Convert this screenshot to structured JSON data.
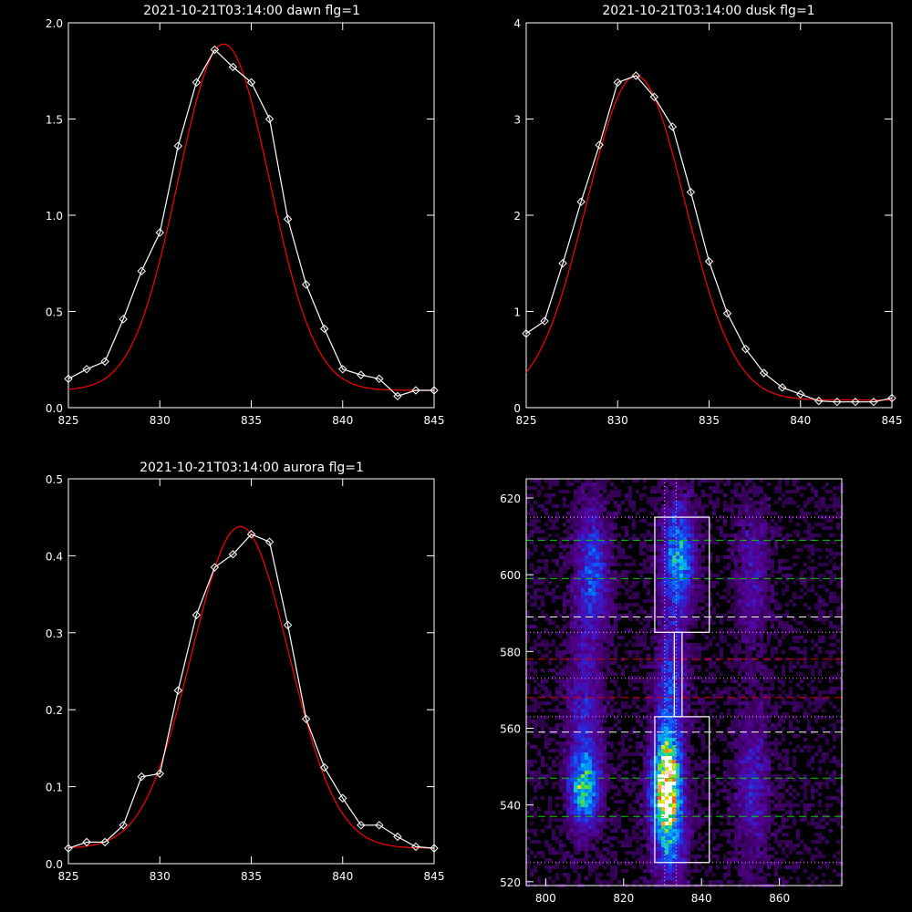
{
  "colors": {
    "background": "#000000",
    "axes": "#ffffff",
    "measured": "#ffffff",
    "fit": "#ff0000",
    "green_dash": "#00d000",
    "white_dash": "#ffffff",
    "red_dash": "#dd0000",
    "dotted": "#ff99ff"
  },
  "chart_data": [
    {
      "type": "line",
      "title": "2021-10-21T03:14:00 dawn flg=1",
      "xlim": [
        825,
        845
      ],
      "ylim": [
        0,
        2.0
      ],
      "xticks": [
        825,
        830,
        835,
        840,
        845
      ],
      "yticks": [
        0.0,
        0.5,
        1.0,
        1.5,
        2.0
      ],
      "ytick_labels": [
        "0.0",
        "0.5",
        "1.0",
        "1.5",
        "2.0"
      ],
      "series": [
        {
          "style": "white line with diamond markers",
          "x": [
            825,
            826,
            827,
            828,
            829,
            830,
            831,
            832,
            833,
            834,
            835,
            836,
            837,
            838,
            839,
            840,
            841,
            842,
            843,
            844,
            845
          ],
          "y": [
            0.15,
            0.2,
            0.24,
            0.46,
            0.71,
            0.91,
            1.36,
            1.69,
            1.86,
            1.77,
            1.69,
            1.5,
            0.98,
            0.64,
            0.41,
            0.2,
            0.17,
            0.15,
            0.06,
            0.09,
            0.09
          ]
        },
        {
          "style": "red gaussian fit",
          "gaussian": {
            "amp": 1.8,
            "center": 833.5,
            "sigma": 2.5,
            "offset": 0.09
          }
        }
      ]
    },
    {
      "type": "line",
      "title": "2021-10-21T03:14:00 dusk flg=1",
      "xlim": [
        825,
        845
      ],
      "ylim": [
        0,
        4
      ],
      "xticks": [
        825,
        830,
        835,
        840,
        845
      ],
      "yticks": [
        0,
        1,
        2,
        3,
        4
      ],
      "ytick_labels": [
        "0",
        "1",
        "2",
        "3",
        "4"
      ],
      "series": [
        {
          "style": "white line with diamond markers",
          "x": [
            825,
            826,
            827,
            828,
            829,
            830,
            831,
            832,
            833,
            834,
            835,
            836,
            837,
            838,
            839,
            840,
            841,
            842,
            843,
            844,
            845
          ],
          "y": [
            0.77,
            0.9,
            1.5,
            2.14,
            2.73,
            3.38,
            3.45,
            3.23,
            2.92,
            2.24,
            1.52,
            0.98,
            0.61,
            0.36,
            0.21,
            0.14,
            0.07,
            0.06,
            0.06,
            0.06,
            0.1
          ]
        },
        {
          "style": "red gaussian fit",
          "gaussian": {
            "amp": 3.37,
            "center": 831.0,
            "sigma": 2.7,
            "offset": 0.08
          }
        }
      ]
    },
    {
      "type": "line",
      "title": "2021-10-21T03:14:00 aurora flg=1",
      "xlim": [
        825,
        845
      ],
      "ylim": [
        0,
        0.5
      ],
      "xticks": [
        825,
        830,
        835,
        840,
        845
      ],
      "yticks": [
        0.0,
        0.1,
        0.2,
        0.3,
        0.4,
        0.5
      ],
      "ytick_labels": [
        "0.0",
        "0.1",
        "0.2",
        "0.3",
        "0.4",
        "0.5"
      ],
      "series": [
        {
          "style": "white line with diamond markers",
          "x": [
            825,
            826,
            827,
            828,
            829,
            830,
            831,
            832,
            833,
            834,
            835,
            836,
            837,
            838,
            839,
            840,
            841,
            842,
            843,
            844,
            845
          ],
          "y": [
            0.02,
            0.028,
            0.028,
            0.05,
            0.113,
            0.117,
            0.225,
            0.323,
            0.385,
            0.402,
            0.428,
            0.418,
            0.31,
            0.188,
            0.125,
            0.085,
            0.05,
            0.05,
            0.035,
            0.022,
            0.02
          ]
        },
        {
          "style": "red gaussian fit",
          "gaussian": {
            "amp": 0.418,
            "center": 834.4,
            "sigma": 2.65,
            "offset": 0.02
          }
        }
      ]
    },
    {
      "type": "heatmap",
      "xlim": [
        795,
        876
      ],
      "ylim": [
        519,
        625
      ],
      "xticks": [
        800,
        820,
        840,
        860
      ],
      "yticks": [
        520,
        540,
        560,
        580,
        600,
        620
      ],
      "blobs": [
        {
          "x": 810,
          "y": 544,
          "sx": 2.6,
          "sy": 6,
          "amp": 0.5
        },
        {
          "x": 810,
          "y": 560,
          "sx": 3,
          "sy": 16,
          "amp": 0.25
        },
        {
          "x": 812,
          "y": 601,
          "sx": 3,
          "sy": 12,
          "amp": 0.32
        },
        {
          "x": 831,
          "y": 545,
          "sx": 2.6,
          "sy": 9,
          "amp": 0.95
        },
        {
          "x": 832,
          "y": 530,
          "sx": 3,
          "sy": 8,
          "amp": 0.3
        },
        {
          "x": 832,
          "y": 570,
          "sx": 2.5,
          "sy": 12,
          "amp": 0.32
        },
        {
          "x": 834,
          "y": 604,
          "sx": 2.8,
          "sy": 10,
          "amp": 0.5
        },
        {
          "x": 853,
          "y": 545,
          "sx": 3,
          "sy": 14,
          "amp": 0.22
        },
        {
          "x": 853,
          "y": 600,
          "sx": 3,
          "sy": 13,
          "amp": 0.18
        }
      ],
      "boxes": [
        {
          "x0": 828,
          "x1": 842,
          "y0": 585,
          "y1": 615
        },
        {
          "x0": 828,
          "x1": 842,
          "y0": 525,
          "y1": 563
        },
        {
          "x0": 833,
          "x1": 835,
          "y0": 563,
          "y1": 585
        }
      ],
      "vlines_dotted": [
        830.5,
        833.5
      ],
      "hlines": [
        {
          "y": 615,
          "style": "dotted"
        },
        {
          "y": 609,
          "style": "green_dash"
        },
        {
          "y": 599,
          "style": "green_dash"
        },
        {
          "y": 589,
          "style": "white_dash"
        },
        {
          "y": 585,
          "style": "dotted"
        },
        {
          "y": 578,
          "style": "red_dash"
        },
        {
          "y": 573,
          "style": "dotted"
        },
        {
          "y": 568,
          "style": "red_dash"
        },
        {
          "y": 563,
          "style": "dotted"
        },
        {
          "y": 559,
          "style": "white_dash"
        },
        {
          "y": 547,
          "style": "green_dash"
        },
        {
          "y": 537,
          "style": "green_dash"
        },
        {
          "y": 525,
          "style": "dotted"
        }
      ]
    }
  ]
}
